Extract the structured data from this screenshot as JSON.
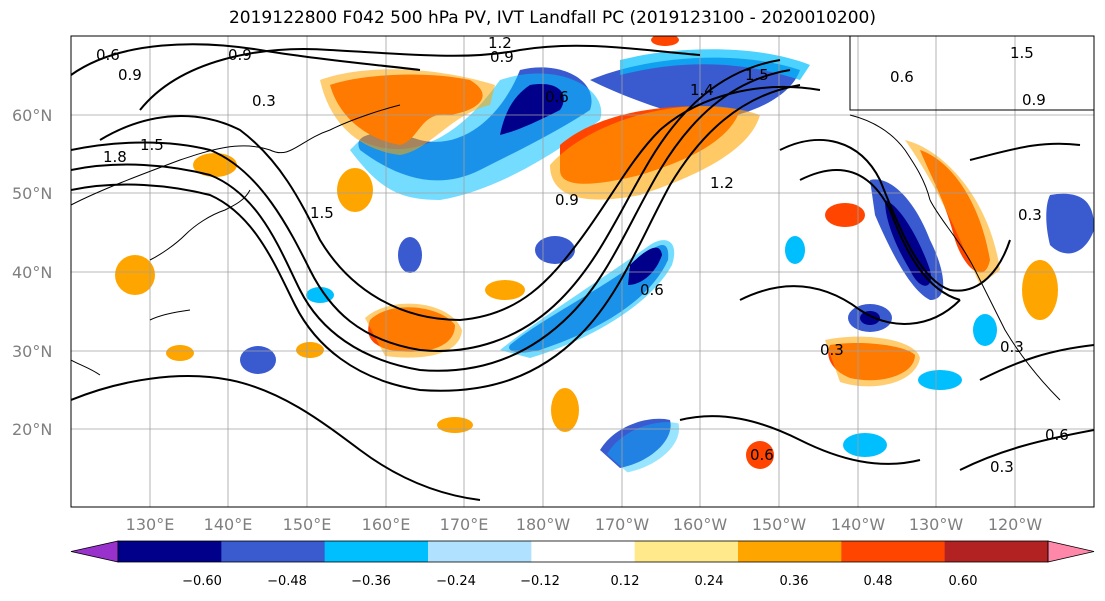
{
  "title": "2019122800 F042 500 hPa PV, IVT Landfall PC (2019123100 - 2020010200)",
  "latitude_labels": [
    "60°N",
    "50°N",
    "40°N",
    "30°N",
    "20°N"
  ],
  "longitude_labels": [
    "130°E",
    "140°E",
    "150°E",
    "160°E",
    "170°E",
    "180°W",
    "170°W",
    "160°W",
    "150°W",
    "140°W",
    "130°W",
    "120°W"
  ],
  "colorbar": {
    "ticks": [
      "−0.60",
      "−0.48",
      "−0.36",
      "−0.24",
      "−0.12",
      "0.12",
      "0.24",
      "0.36",
      "0.48",
      "0.60"
    ],
    "colors": [
      "#9932cc",
      "#00008b",
      "#3a5bd0",
      "#00bfff",
      "#b0e2ff",
      "#ffffff",
      "#ffe98a",
      "#ffa500",
      "#ff4500",
      "#b22222",
      "#ff88aa"
    ]
  },
  "contour_labels": [
    "0.6",
    "0.9",
    "1.2",
    "0.9",
    "0.3",
    "1.8",
    "1.5",
    "1.5",
    "0.6",
    "0.9",
    "1.5",
    "1.4",
    "1.2",
    "0.9",
    "0.6",
    "1.5",
    "0.6",
    "0.9",
    "0.3",
    "0.3",
    "0.3",
    "0.6",
    "0.3",
    "0.6"
  ]
}
